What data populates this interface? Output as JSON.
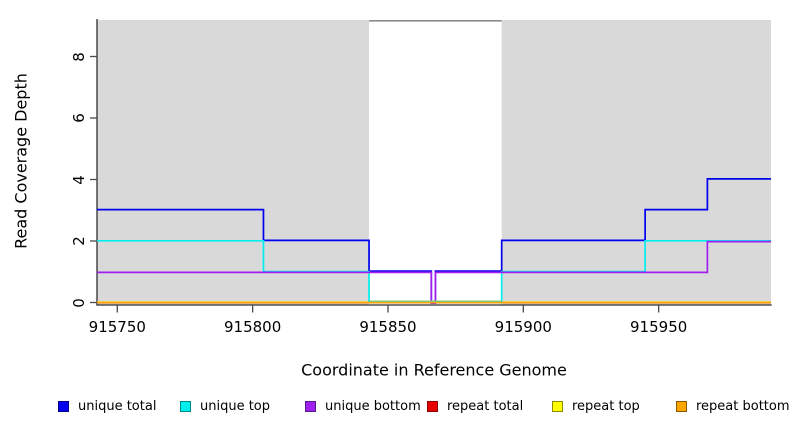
{
  "chart_data": {
    "type": "line",
    "subtype": "step-coverage-plot",
    "title": "",
    "xlabel": "Coordinate in Reference Genome",
    "ylabel": "Read Coverage Depth",
    "xlim": [
      915742.5,
      915991.5
    ],
    "ylim": [
      0,
      9.2
    ],
    "grid": false,
    "legend_position": "bottom",
    "plot_background": "#d9d9d9",
    "x_ticks": [
      {
        "value": 915750,
        "label": "915750"
      },
      {
        "value": 915800,
        "label": "915800"
      },
      {
        "value": 915850,
        "label": "915850"
      },
      {
        "value": 915900,
        "label": "915900"
      },
      {
        "value": 915950,
        "label": "915950"
      }
    ],
    "y_ticks": [
      {
        "value": 0,
        "label": "0"
      },
      {
        "value": 2,
        "label": "2"
      },
      {
        "value": 4,
        "label": "4"
      },
      {
        "value": 6,
        "label": "6"
      },
      {
        "value": 8,
        "label": "8"
      }
    ],
    "highlight_band": {
      "x1": 915843,
      "x2": 915892,
      "fill": "#ffffff",
      "top_border": "#8c8c8c"
    },
    "series": [
      {
        "name": "unique total",
        "color": "#0000ee",
        "steps": [
          [
            915742.5,
            3
          ],
          [
            915804,
            2
          ],
          [
            915843,
            1
          ],
          [
            915866,
            0
          ],
          [
            915867.5,
            1
          ],
          [
            915892,
            2
          ],
          [
            915945,
            3
          ],
          [
            915968,
            4
          ]
        ]
      },
      {
        "name": "unique top",
        "color": "#00eeee",
        "steps": [
          [
            915742.5,
            2
          ],
          [
            915804,
            1
          ],
          [
            915843,
            0
          ],
          [
            915892,
            1
          ],
          [
            915945,
            2
          ]
        ]
      },
      {
        "name": "unique bottom",
        "color": "#a020f0",
        "steps": [
          [
            915742.5,
            1
          ],
          [
            915866,
            0
          ],
          [
            915867.5,
            1
          ],
          [
            915968,
            2
          ]
        ]
      },
      {
        "name": "repeat total",
        "color": "#e60000",
        "steps": [
          [
            915742.5,
            0
          ]
        ]
      },
      {
        "name": "repeat top",
        "color": "#ffff00",
        "steps": [
          [
            915742.5,
            0
          ]
        ]
      },
      {
        "name": "repeat bottom",
        "color": "#ffa500",
        "steps": [
          [
            915742.5,
            0
          ]
        ]
      }
    ],
    "render_artifacts": [
      {
        "name": "cyan-yellow-overlap-line",
        "x1": 915843,
        "x2": 915892,
        "value": 0,
        "color": "#7ccc7c"
      }
    ]
  },
  "legend": {
    "items": [
      {
        "label": "unique total",
        "color": "#0000ee",
        "edge": "#00008b"
      },
      {
        "label": "unique top",
        "color": "#00eeee",
        "edge": "#008b8b"
      },
      {
        "label": "unique bottom",
        "color": "#a020f0",
        "edge": "#551a8b"
      },
      {
        "label": "repeat total",
        "color": "#e60000",
        "edge": "#8b0000"
      },
      {
        "label": "repeat top",
        "color": "#ffff00",
        "edge": "#8b8b00"
      },
      {
        "label": "repeat bottom",
        "color": "#ffa500",
        "edge": "#8b5a00"
      }
    ]
  }
}
